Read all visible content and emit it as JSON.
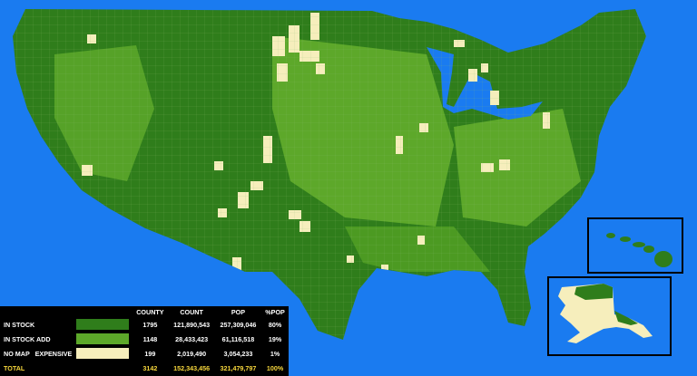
{
  "colors": {
    "ocean": "#1a7bf0",
    "in_stock": "#2f7d1b",
    "in_stock_add": "#5da82a",
    "no_map_expensive": "#f6eebc",
    "border": "#8fc270",
    "total_text": "#f6d63c"
  },
  "legend": {
    "headers": [
      "COUNTY",
      "COUNT",
      "POP",
      "%POP"
    ],
    "rows": [
      {
        "label": "IN STOCK",
        "county": "1795",
        "count": "121,890,543",
        "pop": "257,309,046",
        "pct": "80%"
      },
      {
        "label": "IN STOCK ADD",
        "county": "1148",
        "count": "28,433,423",
        "pop": "61,116,518",
        "pct": "19%"
      },
      {
        "label": "NO MAP   EXPENSIVE",
        "county": "199",
        "count": "2,019,490",
        "pop": "3,054,233",
        "pct": "1%"
      }
    ],
    "total": {
      "label": "TOTAL",
      "county": "3142",
      "count": "152,343,456",
      "pop": "321,479,797",
      "pct": "100%"
    }
  },
  "insets": {
    "hawaii": "hawaii-inset",
    "alaska": "alaska-inset"
  }
}
